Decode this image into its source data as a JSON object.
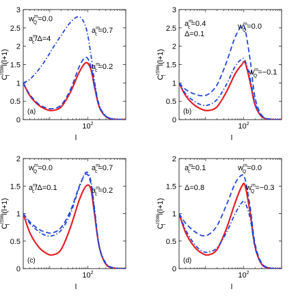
{
  "chart_data": [
    {
      "type": "line",
      "panel_label": "(a)",
      "xlabel": "l",
      "ylabel": "C_l^{ISW} l(l+1)",
      "ylim": [
        0,
        3
      ],
      "yticks": [
        "0",
        "0.5",
        "1",
        "1.5",
        "2",
        "2.5",
        "3"
      ],
      "xscale": "log",
      "xlim": [
        2,
        1000
      ],
      "xtick_label": "10^2",
      "annotations": [
        {
          "base": "w",
          "sup": "m",
          "sub": "Q",
          "rest": "=0.0"
        },
        {
          "base": "a",
          "sup": "m",
          "sub": "c",
          "rest": "/Δ=4"
        },
        {
          "base": "a",
          "sup": "m",
          "sub": "c",
          "rest": "=0.7"
        },
        {
          "base": "a",
          "sup": "m",
          "sub": "c",
          "rest": "=0.2"
        }
      ],
      "x": [
        2,
        3,
        5,
        8,
        12,
        20,
        35,
        60,
        90,
        120,
        150,
        200,
        300,
        500,
        1000
      ],
      "series": [
        {
          "style": "solid",
          "color": "#e41e26",
          "values": [
            1.0,
            0.65,
            0.4,
            0.28,
            0.25,
            0.35,
            0.75,
            1.3,
            1.55,
            1.38,
            0.9,
            0.35,
            0.08,
            0.01,
            0.0
          ]
        },
        {
          "style": "dashed",
          "color": "#2146d8",
          "values": [
            1.0,
            0.68,
            0.43,
            0.32,
            0.3,
            0.4,
            0.82,
            1.45,
            1.7,
            1.45,
            0.95,
            0.37,
            0.09,
            0.01,
            0.0
          ]
        },
        {
          "style": "dashdot",
          "color": "#2146d8",
          "values": [
            1.0,
            1.1,
            1.35,
            1.65,
            1.95,
            2.3,
            2.65,
            2.8,
            2.5,
            1.8,
            1.05,
            0.4,
            0.1,
            0.01,
            0.0
          ]
        }
      ]
    },
    {
      "type": "line",
      "panel_label": "(b)",
      "xlabel": "l",
      "ylabel": "C_l^{ISW} l(l+1)",
      "ylim": [
        0,
        3
      ],
      "yticks": [
        "0",
        "0.5",
        "1",
        "1.5",
        "2",
        "2.5",
        "3"
      ],
      "xscale": "log",
      "xlim": [
        2,
        1000
      ],
      "xtick_label": "10^2",
      "annotations": [
        {
          "base": "a",
          "sup": "m",
          "sub": "c",
          "rest": "=0.4"
        },
        {
          "base": "",
          "sup": "",
          "sub": "",
          "rest": "Δ=0.1"
        },
        {
          "base": "w",
          "sup": "m",
          "sub": "Q",
          "rest": "=0.0"
        },
        {
          "base": "w",
          "sup": "m",
          "sub": "Q",
          "rest": "=−0.1"
        }
      ],
      "x": [
        2,
        3,
        5,
        8,
        12,
        20,
        35,
        60,
        90,
        110,
        150,
        200,
        300,
        500,
        1000
      ],
      "series": [
        {
          "style": "solid",
          "color": "#e41e26",
          "values": [
            1.0,
            0.65,
            0.4,
            0.28,
            0.25,
            0.35,
            0.75,
            1.25,
            1.5,
            1.55,
            1.0,
            0.4,
            0.08,
            0.01,
            0.0
          ]
        },
        {
          "style": "dashed",
          "color": "#2146d8",
          "values": [
            1.0,
            0.82,
            0.7,
            0.65,
            0.7,
            0.95,
            1.55,
            2.25,
            2.55,
            2.45,
            1.6,
            0.6,
            0.12,
            0.01,
            0.0
          ]
        },
        {
          "style": "dashdot",
          "color": "#2146d8",
          "values": [
            1.0,
            0.7,
            0.5,
            0.4,
            0.4,
            0.55,
            0.95,
            1.45,
            1.65,
            1.6,
            1.1,
            0.45,
            0.1,
            0.01,
            0.0
          ]
        }
      ]
    },
    {
      "type": "line",
      "panel_label": "(c)",
      "xlabel": "l",
      "ylabel": "C_l^{ISW} l(l+1)",
      "ylim": [
        0,
        2
      ],
      "yticks": [
        "0",
        "0.5",
        "1",
        "1.5",
        "2"
      ],
      "xscale": "log",
      "xlim": [
        2,
        1000
      ],
      "xtick_label": "10^2",
      "annotations": [
        {
          "base": "w",
          "sup": "m",
          "sub": "Q",
          "rest": "=0.0"
        },
        {
          "base": "a",
          "sup": "m",
          "sub": "c",
          "rest": "/Δ=0.1"
        },
        {
          "base": "a",
          "sup": "m",
          "sub": "c",
          "rest": "=0.7"
        },
        {
          "base": "a",
          "sup": "m",
          "sub": "c",
          "rest": "=0.2"
        }
      ],
      "x": [
        2,
        3,
        5,
        8,
        12,
        20,
        35,
        60,
        90,
        120,
        150,
        200,
        300,
        500,
        1000
      ],
      "series": [
        {
          "style": "solid",
          "color": "#e41e26",
          "values": [
            1.0,
            0.65,
            0.4,
            0.28,
            0.25,
            0.35,
            0.75,
            1.25,
            1.5,
            1.45,
            1.0,
            0.4,
            0.08,
            0.01,
            0.0
          ]
        },
        {
          "style": "dashed",
          "color": "#2146d8",
          "values": [
            1.0,
            0.85,
            0.72,
            0.66,
            0.65,
            0.75,
            1.05,
            1.5,
            1.72,
            1.55,
            1.05,
            0.4,
            0.09,
            0.01,
            0.0
          ]
        },
        {
          "style": "dashdot",
          "color": "#2146d8",
          "values": [
            1.0,
            0.82,
            0.68,
            0.6,
            0.6,
            0.7,
            1.0,
            1.48,
            1.75,
            1.6,
            1.1,
            0.42,
            0.1,
            0.01,
            0.0
          ]
        }
      ]
    },
    {
      "type": "line",
      "panel_label": "(d)",
      "xlabel": "l",
      "ylabel": "C_l^{ISW} l(l+1)",
      "ylim": [
        0,
        2
      ],
      "yticks": [
        "0",
        "0.5",
        "1",
        "1.5",
        "2"
      ],
      "xscale": "log",
      "xlim": [
        2,
        1000
      ],
      "xtick_label": "10^2",
      "annotations": [
        {
          "base": "a",
          "sup": "m",
          "sub": "c",
          "rest": "=0.1"
        },
        {
          "base": "",
          "sup": "",
          "sub": "",
          "rest": "Δ=0.8"
        },
        {
          "base": "w",
          "sup": "m",
          "sub": "Q",
          "rest": "=0.0"
        },
        {
          "base": "w",
          "sup": "m",
          "sub": "Q",
          "rest": "=−0.3"
        }
      ],
      "x": [
        2,
        3,
        5,
        8,
        12,
        20,
        35,
        60,
        90,
        110,
        150,
        200,
        300,
        500,
        1000
      ],
      "series": [
        {
          "style": "solid",
          "color": "#e41e26",
          "values": [
            1.0,
            0.65,
            0.4,
            0.28,
            0.25,
            0.35,
            0.72,
            1.2,
            1.5,
            1.5,
            1.0,
            0.4,
            0.08,
            0.01,
            0.0
          ]
        },
        {
          "style": "dashed",
          "color": "#2146d8",
          "values": [
            1.0,
            0.82,
            0.68,
            0.6,
            0.62,
            0.78,
            1.15,
            1.55,
            1.7,
            1.62,
            1.1,
            0.45,
            0.1,
            0.01,
            0.0
          ]
        },
        {
          "style": "dashdot",
          "color": "#2146d8",
          "values": [
            1.0,
            0.7,
            0.45,
            0.32,
            0.3,
            0.38,
            0.65,
            1.0,
            1.2,
            1.2,
            0.9,
            0.38,
            0.08,
            0.01,
            0.0
          ]
        }
      ]
    }
  ]
}
